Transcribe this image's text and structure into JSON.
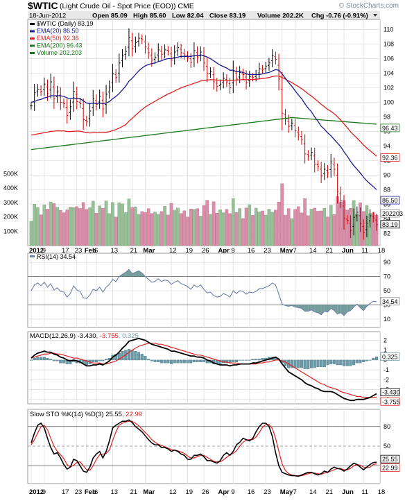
{
  "header": {
    "symbol": "$WTIC",
    "description": "(Light Crude Oil - Spot Price (EOD)) CME",
    "watermark": "© StockCharts.com",
    "date": "18-Jun-2012",
    "open": "Open 85.09",
    "high": "High 85.60",
    "low": "Low 82.04",
    "close": "Close 83.19",
    "volume": "Volume 202.2K",
    "chg": "Chg -0.76 (-0.91%)"
  },
  "colors": {
    "up": "#000000",
    "down": "#cc0000",
    "ema20": "#1a1a8c",
    "ema50": "#e02020",
    "ema200": "#1a7a1a",
    "vol_up": "#98c098",
    "vol_down": "#d98fa8",
    "rsi": "#6f7fa8",
    "rsi_fill": "#5e8c8c",
    "hist": "#6a9aa8",
    "macd": "#000000",
    "signal": "#e02020",
    "stok": "#000000",
    "stod": "#e02020",
    "highlight": "#e8e8e8"
  },
  "chart_data": [
    {
      "type": "ohlc",
      "title": "$WTIC (Daily) 83.19",
      "legend": [
        {
          "label": "$WTIC (Daily) 83.19",
          "color": "#000000"
        },
        {
          "label": "EMA(20) 86.50",
          "color": "#1a1a8c"
        },
        {
          "label": "EMA(50) 92.36",
          "color": "#e02020"
        },
        {
          "label": "EMA(200) 96.43",
          "color": "#1a7a1a"
        },
        {
          "label": "Volume 202,203",
          "color": "#1a7a1a"
        }
      ],
      "y_ticks": [
        "110",
        "108",
        "106",
        "104",
        "102",
        "100",
        "98",
        "96",
        "94",
        "92",
        "90",
        "88",
        "86",
        "84",
        "82"
      ],
      "ylim": [
        80.5,
        111
      ],
      "vol_ticks": [
        "500K",
        "400K",
        "300K",
        "200K",
        "100K"
      ],
      "vol_max": 560,
      "last_labels": [
        "96.43",
        "92.36",
        "86.50",
        "202203",
        "83.19"
      ],
      "x_labels": [
        "2012",
        "9",
        "17",
        "23",
        "Feb",
        "6",
        "13",
        "21",
        "Mar",
        "12",
        "19",
        "26",
        "Apr",
        "9",
        "16",
        "23",
        "May",
        "7",
        "14",
        "21",
        "Jun",
        "11",
        "18"
      ],
      "x_label_days": [
        0,
        4,
        10,
        14,
        17,
        20,
        25,
        31,
        35,
        43,
        48,
        53,
        58,
        62,
        67,
        72,
        77,
        81,
        86,
        91,
        96,
        102,
        107
      ],
      "close": [
        99.5,
        101.3,
        101.8,
        101.5,
        102.5,
        101.2,
        102.8,
        100.5,
        101.4,
        100.0,
        99.8,
        98.2,
        99.4,
        101.5,
        100.1,
        99.8,
        97.6,
        97.3,
        98.8,
        100.5,
        99.7,
        100.8,
        99.1,
        101.1,
        102.1,
        104.0,
        103.4,
        105.4,
        106.4,
        107.0,
        108.9,
        107.4,
        108.2,
        108.8,
        108.6,
        107.6,
        106.8,
        105.8,
        106.2,
        107.2,
        106.6,
        107.2,
        107.0,
        105.8,
        106.9,
        107.5,
        106.8,
        106.5,
        106.2,
        105.5,
        107.1,
        106.2,
        106.9,
        105.4,
        103.9,
        104.2,
        102.8,
        102.2,
        102.5,
        103.3,
        102.8,
        102.0,
        104.3,
        103.2,
        104.1,
        103.8,
        102.7,
        103.5,
        103.4,
        103.8,
        104.6,
        104.5,
        104.9,
        105.4,
        106.4,
        105.9,
        103.2,
        98.5,
        97.7,
        96.7,
        97.1,
        96.1,
        95.5,
        94.9,
        92.9,
        92.6,
        93.1,
        91.5,
        91.2,
        89.9,
        90.8,
        90.3,
        91.8,
        90.8,
        87.8,
        86.5,
        84.0,
        83.8,
        82.4,
        84.2,
        84.9,
        83.3,
        82.1,
        83.4,
        84.4,
        84.1,
        83.2
      ],
      "ema20": [
        100.0,
        100.1,
        100.3,
        100.4,
        100.6,
        100.7,
        100.9,
        100.9,
        100.9,
        100.9,
        100.8,
        100.6,
        100.5,
        100.6,
        100.5,
        100.5,
        100.2,
        99.9,
        99.8,
        99.9,
        99.8,
        99.9,
        99.8,
        99.9,
        100.1,
        100.5,
        100.8,
        101.2,
        101.7,
        102.2,
        102.9,
        103.3,
        103.8,
        104.3,
        104.7,
        105.0,
        105.2,
        105.3,
        105.4,
        105.6,
        105.7,
        105.9,
        106.0,
        106.0,
        106.1,
        106.2,
        106.3,
        106.3,
        106.3,
        106.3,
        106.4,
        106.4,
        106.5,
        106.4,
        106.2,
        106.0,
        105.7,
        105.4,
        105.1,
        104.9,
        104.7,
        104.4,
        104.4,
        104.2,
        104.2,
        104.1,
        103.9,
        103.8,
        103.8,
        103.8,
        103.8,
        103.9,
        104.0,
        104.1,
        104.3,
        104.5,
        104.4,
        103.9,
        103.3,
        102.7,
        102.2,
        101.6,
        101.0,
        100.5,
        99.8,
        99.2,
        98.7,
        98.0,
        97.4,
        96.7,
        96.3,
        95.8,
        95.4,
        94.9,
        94.4,
        93.9,
        93.2,
        92.6,
        91.9,
        91.3,
        90.8,
        90.3,
        89.7,
        89.2,
        88.8,
        88.4,
        88.0
      ]
    },
    {
      "type": "line",
      "title": "RSI(14) 34.54",
      "y_ticks": [
        "90",
        "70",
        "50",
        "30",
        "10"
      ],
      "ylim": [
        0,
        100
      ],
      "levels": [
        70,
        30
      ],
      "last_label": "34.54",
      "values": [
        50,
        58,
        61,
        57,
        62,
        55,
        60,
        51,
        54,
        49,
        48,
        41,
        46,
        57,
        51,
        49,
        40,
        39,
        44,
        52,
        50,
        55,
        48,
        55,
        59,
        66,
        63,
        70,
        73,
        76,
        80,
        74,
        76,
        78,
        75,
        70,
        66,
        62,
        63,
        67,
        63,
        65,
        64,
        59,
        62,
        64,
        60,
        58,
        56,
        52,
        58,
        55,
        58,
        52,
        47,
        48,
        43,
        41,
        42,
        46,
        44,
        41,
        50,
        46,
        50,
        49,
        45,
        48,
        47,
        49,
        53,
        53,
        55,
        57,
        61,
        58,
        45,
        31,
        29,
        28,
        29,
        27,
        26,
        25,
        21,
        21,
        23,
        20,
        19,
        16,
        21,
        20,
        25,
        22,
        17,
        19,
        15,
        20,
        22,
        27,
        31,
        26,
        22,
        28,
        32,
        35,
        34.54
      ]
    },
    {
      "type": "line",
      "title": "MACD(12,26,9) -3.430, -3.755, 0.325",
      "series": [
        {
          "name": "MACD(12,26,9) -3.430",
          "color": "#000000"
        },
        {
          "name": "-3.755",
          "color": "#e02020"
        },
        {
          "name": "0.325",
          "color": "#6a9aa8"
        }
      ],
      "y_ticks": [
        "2",
        "1",
        "0",
        "-1",
        "-2",
        "-3",
        "-4"
      ],
      "ylim": [
        -4.3,
        2.6
      ],
      "last_labels": [
        "0.325",
        "-3.430",
        "-3.755"
      ],
      "macd": [
        0.2,
        0.5,
        0.7,
        0.8,
        0.9,
        0.8,
        0.8,
        0.6,
        0.5,
        0.3,
        0.2,
        0.0,
        -0.1,
        0.0,
        -0.1,
        -0.2,
        -0.4,
        -0.6,
        -0.6,
        -0.5,
        -0.5,
        -0.4,
        -0.5,
        -0.3,
        -0.1,
        0.3,
        0.5,
        0.8,
        1.2,
        1.5,
        1.9,
        2.0,
        2.1,
        2.2,
        2.1,
        2.0,
        1.8,
        1.6,
        1.5,
        1.4,
        1.3,
        1.2,
        1.1,
        0.9,
        0.9,
        0.8,
        0.7,
        0.6,
        0.5,
        0.4,
        0.4,
        0.3,
        0.3,
        0.2,
        0.0,
        -0.1,
        -0.3,
        -0.4,
        -0.5,
        -0.5,
        -0.5,
        -0.6,
        -0.5,
        -0.5,
        -0.4,
        -0.4,
        -0.4,
        -0.4,
        -0.3,
        -0.3,
        -0.2,
        -0.1,
        0.0,
        0.1,
        0.2,
        0.3,
        0.1,
        -0.4,
        -0.8,
        -1.2,
        -1.4,
        -1.6,
        -1.8,
        -2.0,
        -2.3,
        -2.5,
        -2.6,
        -2.8,
        -2.9,
        -3.1,
        -3.2,
        -3.2,
        -3.2,
        -3.3,
        -3.5,
        -3.7,
        -3.9,
        -4.0,
        -4.1,
        -4.1,
        -4.0,
        -4.0,
        -4.0,
        -3.9,
        -3.8,
        -3.6,
        -3.43
      ],
      "signal": [
        0.2,
        0.3,
        0.4,
        0.5,
        0.6,
        0.6,
        0.7,
        0.7,
        0.6,
        0.6,
        0.5,
        0.4,
        0.3,
        0.2,
        0.2,
        0.1,
        0.0,
        -0.1,
        -0.2,
        -0.3,
        -0.3,
        -0.3,
        -0.4,
        -0.4,
        -0.3,
        -0.2,
        -0.1,
        0.1,
        0.3,
        0.5,
        0.8,
        1.0,
        1.2,
        1.4,
        1.5,
        1.6,
        1.7,
        1.7,
        1.7,
        1.6,
        1.6,
        1.5,
        1.4,
        1.3,
        1.2,
        1.1,
        1.0,
        0.9,
        0.8,
        0.7,
        0.6,
        0.5,
        0.5,
        0.4,
        0.3,
        0.2,
        0.1,
        0.0,
        -0.1,
        -0.2,
        -0.2,
        -0.3,
        -0.3,
        -0.3,
        -0.4,
        -0.4,
        -0.4,
        -0.4,
        -0.4,
        -0.4,
        -0.3,
        -0.3,
        -0.2,
        -0.2,
        -0.1,
        0.0,
        0.0,
        -0.1,
        -0.2,
        -0.4,
        -0.6,
        -0.8,
        -1.0,
        -1.2,
        -1.4,
        -1.6,
        -1.8,
        -2.0,
        -2.2,
        -2.4,
        -2.5,
        -2.7,
        -2.8,
        -2.9,
        -3.0,
        -3.2,
        -3.3,
        -3.4,
        -3.5,
        -3.6,
        -3.7,
        -3.7,
        -3.8,
        -3.8,
        -3.8,
        -3.8,
        -3.755
      ]
    },
    {
      "type": "line",
      "title": "Slow STO %K(14) %D(3) 25.55, 22.99",
      "series": [
        {
          "name": "Slow STO %K(14) %D(3) 25.55",
          "color": "#000000"
        },
        {
          "name": "22.99",
          "color": "#e02020"
        }
      ],
      "y_ticks": [
        "80",
        "50",
        "20"
      ],
      "ylim": [
        -5,
        102
      ],
      "levels": [
        80,
        50,
        20
      ],
      "last_labels": [
        "25.55",
        "22.99"
      ],
      "k": [
        55,
        70,
        82,
        85,
        78,
        62,
        48,
        38,
        40,
        32,
        22,
        15,
        18,
        30,
        28,
        20,
        12,
        10,
        18,
        32,
        38,
        42,
        32,
        42,
        58,
        78,
        82,
        85,
        88,
        88,
        90,
        86,
        80,
        76,
        72,
        66,
        60,
        55,
        52,
        52,
        48,
        48,
        46,
        42,
        44,
        42,
        38,
        36,
        30,
        30,
        36,
        36,
        38,
        34,
        28,
        28,
        26,
        24,
        28,
        36,
        40,
        36,
        42,
        52,
        56,
        62,
        60,
        58,
        62,
        72,
        80,
        85,
        85,
        80,
        65,
        40,
        20,
        10,
        8,
        6,
        5,
        5,
        4,
        6,
        8,
        10,
        10,
        8,
        6,
        8,
        12,
        10,
        15,
        18,
        16,
        15,
        12,
        15,
        20,
        24,
        22,
        18,
        14,
        18,
        22,
        25,
        25.55
      ],
      "d": [
        52,
        60,
        70,
        80,
        82,
        75,
        62,
        50,
        42,
        37,
        31,
        22,
        18,
        21,
        25,
        26,
        20,
        14,
        13,
        20,
        30,
        37,
        38,
        39,
        44,
        59,
        72,
        82,
        85,
        87,
        88,
        88,
        85,
        81,
        76,
        71,
        66,
        60,
        56,
        53,
        51,
        49,
        47,
        45,
        44,
        43,
        41,
        39,
        35,
        32,
        32,
        34,
        36,
        36,
        33,
        30,
        27,
        26,
        26,
        29,
        33,
        37,
        39,
        43,
        50,
        56,
        59,
        60,
        60,
        64,
        71,
        79,
        83,
        83,
        77,
        62,
        42,
        23,
        13,
        8,
        6,
        5,
        5,
        5,
        6,
        8,
        9,
        9,
        8,
        7,
        9,
        10,
        12,
        14,
        16,
        16,
        14,
        14,
        16,
        20,
        22,
        21,
        18,
        17,
        18,
        22,
        22.99
      ]
    }
  ]
}
